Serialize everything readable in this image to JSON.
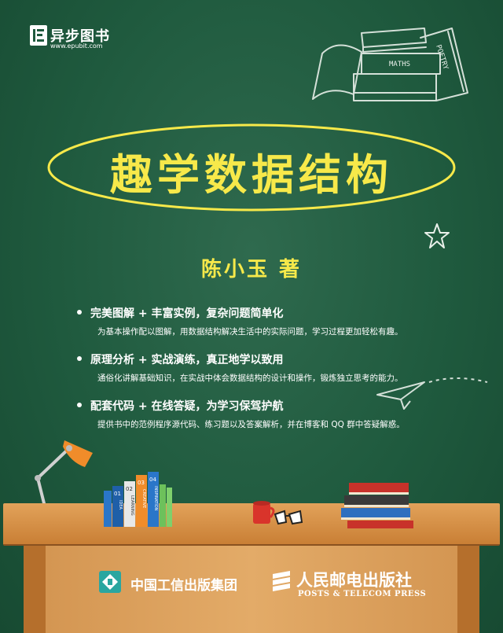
{
  "publisher_logo": {
    "name": "异步图书",
    "url": "www.epubit.com"
  },
  "doodle": {
    "book_label_1": "MATHS",
    "book_label_2": "POETRY"
  },
  "book": {
    "title": "趣学数据结构",
    "author": "陈小玉 著"
  },
  "features": [
    {
      "title": "完美图解 + 丰富实例，复杂问题简单化",
      "desc": "为基本操作配以图解，用数据结构解决生活中的实际问题，学习过程更加轻松有趣。"
    },
    {
      "title": "原理分析 + 实战演练，真正地学以致用",
      "desc": "通俗化讲解基础知识，在实战中体会数据结构的设计和操作，锻炼独立思考的能力。"
    },
    {
      "title": "配套代码 + 在线答疑，为学习保驾护航",
      "desc": "提供书中的范例程序源代码、练习题以及答案解析，并在博客和 QQ 群中答疑解惑。"
    }
  ],
  "shelf_books": [
    "01",
    "02",
    "03",
    "04"
  ],
  "shelf_book_words": [
    "IDEA",
    "LEARNING",
    "CREATIVE",
    "INSPIRATION"
  ],
  "publishers": {
    "group": "中国工信出版集团",
    "press": "人民邮电出版社",
    "press_en": "POSTS & TELECOM PRESS"
  },
  "colors": {
    "board": "#1f5a3e",
    "title_yellow": "#f7e94a",
    "desk": "#d49652"
  }
}
